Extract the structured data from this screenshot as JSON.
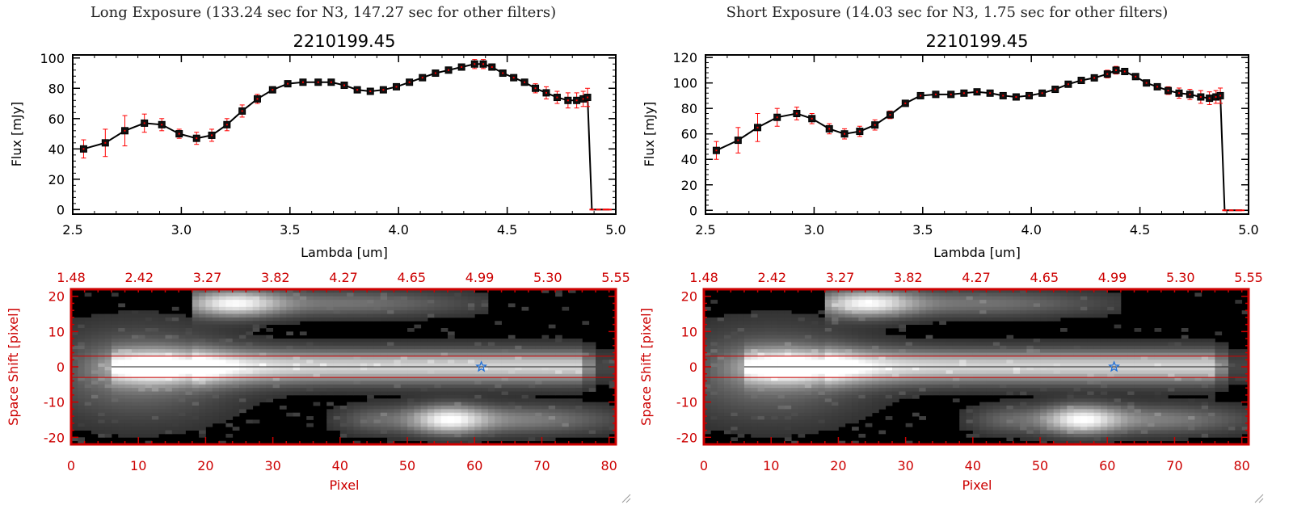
{
  "panels": [
    {
      "heading": "Long Exposure (133.24 sec for N3, 147.27 sec for other filters)",
      "title": "2210199.45",
      "chart_data": {
        "type": "line",
        "title": "2210199.45",
        "xlabel": "Lambda [um]",
        "ylabel": "Flux [mJy]",
        "xlim": [
          2.5,
          5.0
        ],
        "ylim": [
          -3,
          102
        ],
        "xticks": [
          "2.5",
          "3.0",
          "3.5",
          "4.0",
          "4.5",
          "5.0"
        ],
        "yticks": [
          "0",
          "20",
          "40",
          "60",
          "80",
          "100"
        ],
        "x": [
          2.55,
          2.65,
          2.74,
          2.83,
          2.91,
          2.99,
          3.07,
          3.14,
          3.21,
          3.28,
          3.35,
          3.42,
          3.49,
          3.56,
          3.63,
          3.69,
          3.75,
          3.81,
          3.87,
          3.93,
          3.99,
          4.05,
          4.11,
          4.17,
          4.23,
          4.29,
          4.35,
          4.39,
          4.43,
          4.48,
          4.53,
          4.58,
          4.63,
          4.68,
          4.73,
          4.78,
          4.82,
          4.85,
          4.87,
          4.89,
          4.92,
          4.95,
          4.97
        ],
        "y": [
          40,
          44,
          52,
          57,
          56,
          50,
          47,
          49,
          56,
          65,
          73,
          79,
          83,
          84,
          84,
          84,
          82,
          79,
          78,
          79,
          81,
          84,
          87,
          90,
          92,
          94,
          96,
          96,
          94,
          90,
          87,
          84,
          80,
          77,
          74,
          72,
          72,
          73,
          74,
          0,
          0,
          0,
          0
        ],
        "yerr": [
          6,
          9,
          10,
          6,
          4,
          3,
          4,
          4,
          4,
          4,
          3,
          2,
          2,
          1,
          1,
          1,
          1,
          1,
          1,
          1,
          1,
          1,
          1,
          1,
          2,
          2,
          3,
          3,
          2,
          2,
          1,
          2,
          3,
          4,
          4,
          5,
          5,
          5,
          6,
          0,
          0,
          0,
          0
        ],
        "image": {
          "type": "heatmap",
          "xlabel": "Pixel",
          "ylabel": "Space Shift [pixel]",
          "xlim": [
            0,
            81
          ],
          "ylim": [
            -22,
            22
          ],
          "xticks": [
            "0",
            "10",
            "20",
            "30",
            "40",
            "50",
            "60",
            "70",
            "80"
          ],
          "yticks": [
            "-20",
            "-10",
            "0",
            "10",
            "20"
          ],
          "top_axis_ticks": [
            "1.48",
            "2.42",
            "3.27",
            "3.82",
            "4.27",
            "4.65",
            "4.99",
            "5.30",
            "5.55"
          ],
          "aperture": [
            -3,
            3
          ],
          "marker": {
            "x": 61,
            "y": 0
          }
        }
      }
    },
    {
      "heading": "Short Exposure (14.03 sec for N3, 1.75 sec for other filters)",
      "title": "2210199.45",
      "chart_data": {
        "type": "line",
        "title": "2210199.45",
        "xlabel": "Lambda [um]",
        "ylabel": "Flux [mJy]",
        "xlim": [
          2.5,
          5.0
        ],
        "ylim": [
          -3,
          122
        ],
        "xticks": [
          "2.5",
          "3.0",
          "3.5",
          "4.0",
          "4.5",
          "5.0"
        ],
        "yticks": [
          "0",
          "20",
          "40",
          "60",
          "80",
          "100",
          "120"
        ],
        "x": [
          2.55,
          2.65,
          2.74,
          2.83,
          2.92,
          2.99,
          3.07,
          3.14,
          3.21,
          3.28,
          3.35,
          3.42,
          3.49,
          3.56,
          3.63,
          3.69,
          3.75,
          3.81,
          3.87,
          3.93,
          3.99,
          4.05,
          4.11,
          4.17,
          4.23,
          4.29,
          4.35,
          4.39,
          4.43,
          4.48,
          4.53,
          4.58,
          4.63,
          4.68,
          4.73,
          4.78,
          4.82,
          4.85,
          4.87,
          4.89,
          4.92,
          4.95,
          4.97
        ],
        "y": [
          47,
          55,
          65,
          73,
          76,
          72,
          64,
          60,
          62,
          67,
          75,
          84,
          90,
          91,
          91,
          92,
          93,
          92,
          90,
          89,
          90,
          92,
          95,
          99,
          102,
          104,
          107,
          110,
          109,
          105,
          100,
          97,
          94,
          92,
          91,
          89,
          88,
          89,
          90,
          0,
          0,
          0,
          0
        ],
        "yerr": [
          7,
          10,
          11,
          7,
          5,
          4,
          4,
          4,
          4,
          4,
          3,
          2,
          2,
          1,
          1,
          1,
          1,
          1,
          1,
          1,
          1,
          1,
          1,
          1,
          2,
          2,
          3,
          3,
          2,
          2,
          1,
          2,
          3,
          4,
          4,
          5,
          5,
          5,
          6,
          0,
          0,
          0,
          0
        ],
        "image": {
          "type": "heatmap",
          "xlabel": "Pixel",
          "ylabel": "Space Shift [pixel]",
          "xlim": [
            0,
            81
          ],
          "ylim": [
            -22,
            22
          ],
          "xticks": [
            "0",
            "10",
            "20",
            "30",
            "40",
            "50",
            "60",
            "70",
            "80"
          ],
          "yticks": [
            "-20",
            "-10",
            "0",
            "10",
            "20"
          ],
          "top_axis_ticks": [
            "1.48",
            "2.42",
            "3.27",
            "3.82",
            "4.27",
            "4.65",
            "4.99",
            "5.30",
            "5.55"
          ],
          "aperture": [
            -3,
            3
          ],
          "marker": {
            "x": 61,
            "y": 0
          }
        }
      }
    }
  ],
  "colors": {
    "line": "#000000",
    "error_bar": "#ff0000",
    "image_frame": "#cc0000",
    "aperture": "#cc0000",
    "marker": "#1e6fd8",
    "background": "#000000"
  }
}
